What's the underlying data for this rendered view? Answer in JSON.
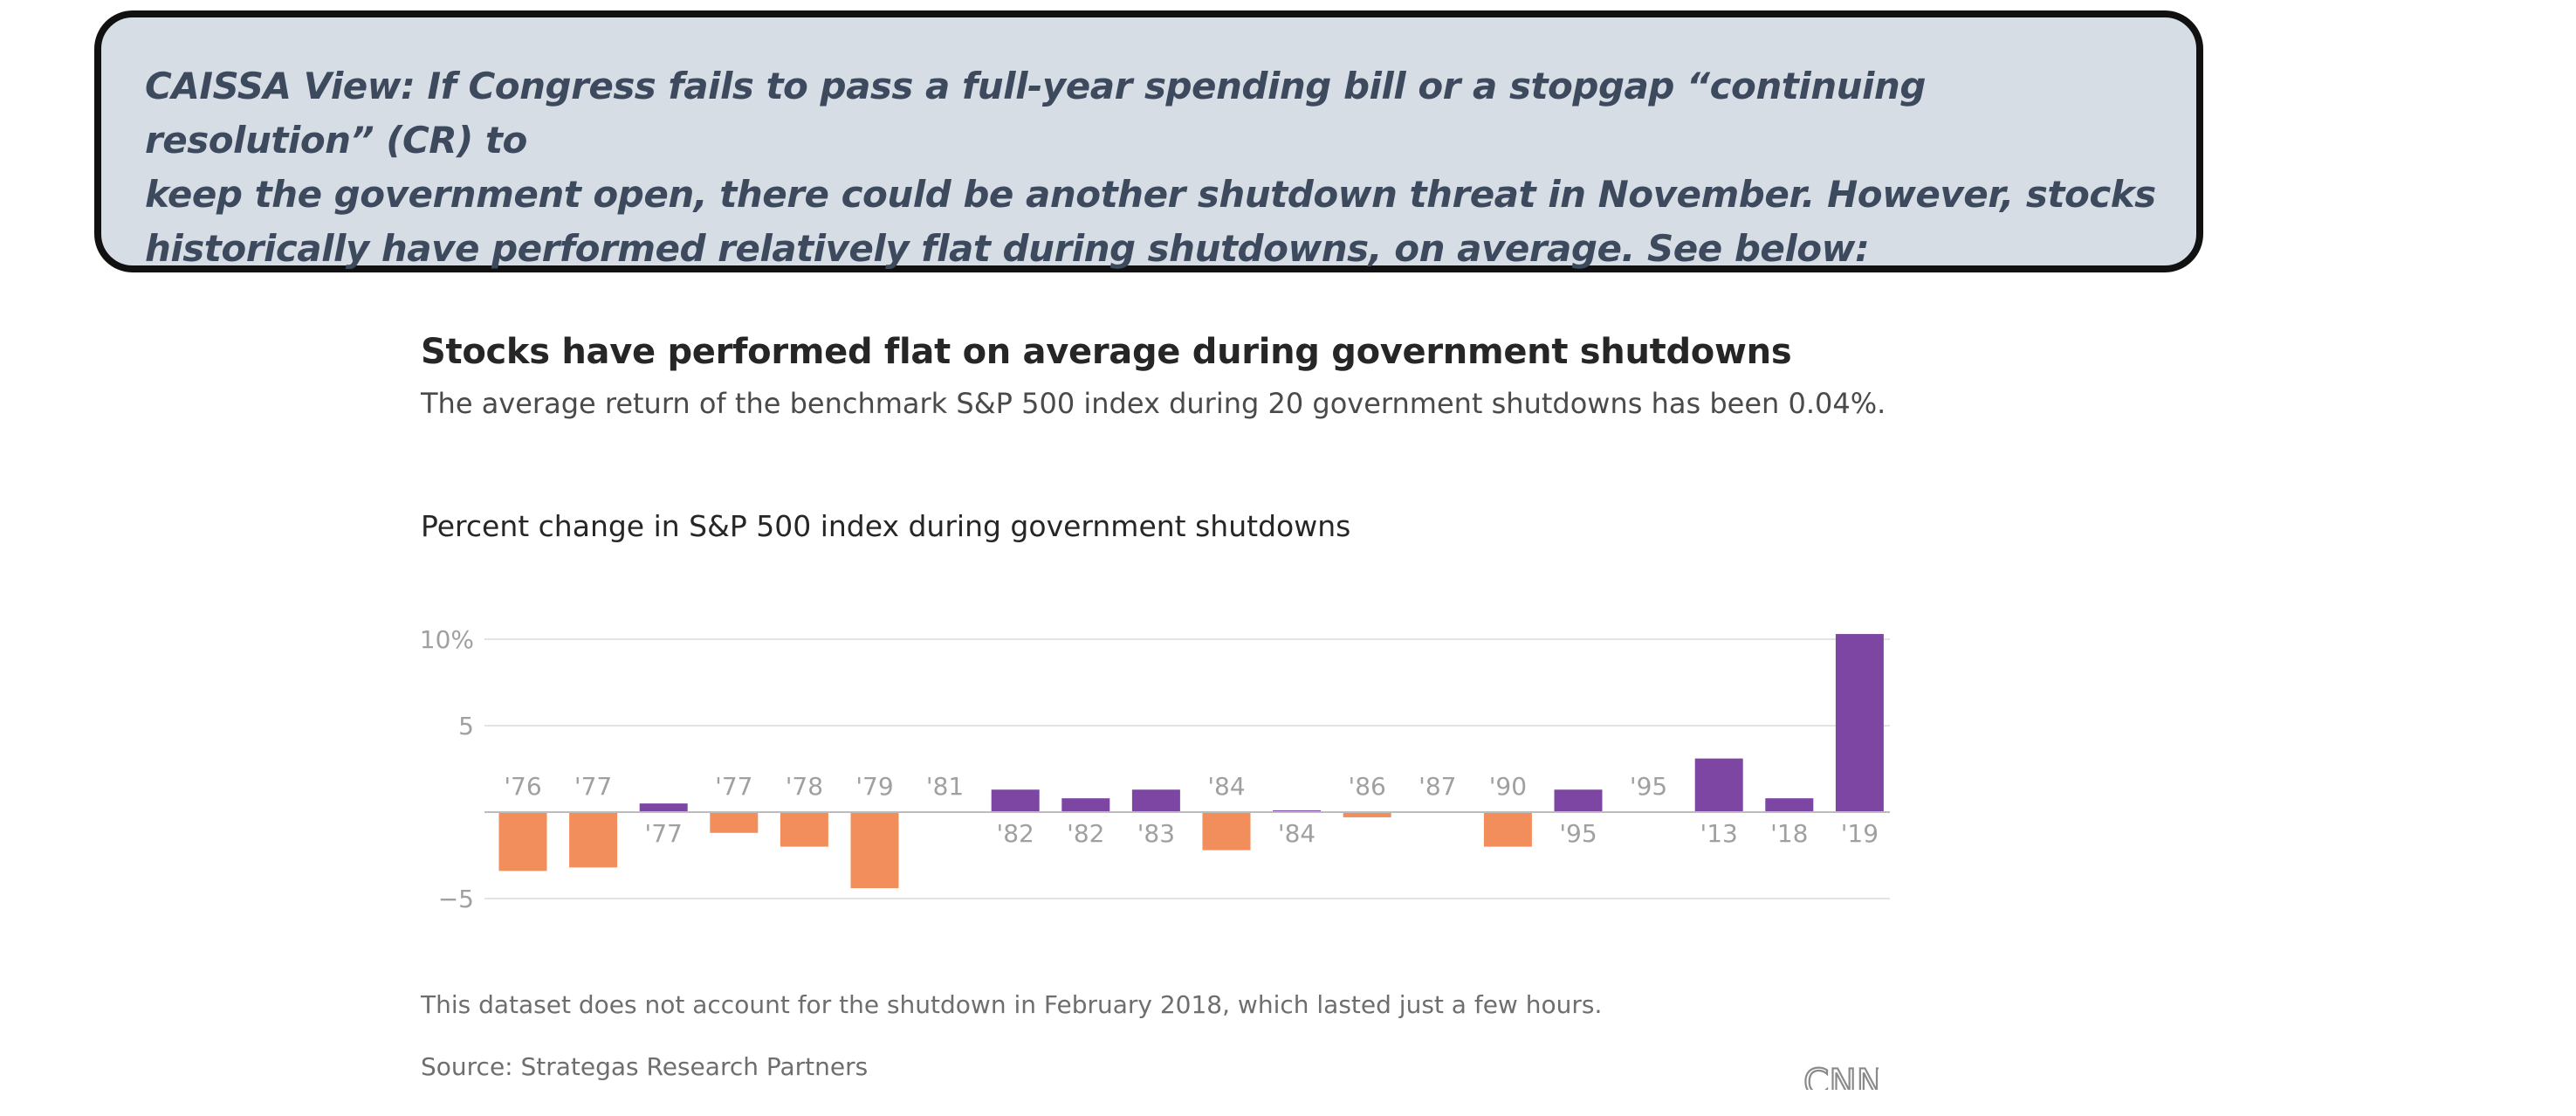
{
  "callout": {
    "text": "CAISSA View: If Congress fails to pass a full-year spending bill or a stopgap “continuing resolution” (CR) to\nkeep the government open, there could be another shutdown threat  in November. However, stocks\nhistorically have performed relatively flat during shutdowns, on average. See below:"
  },
  "chart_data": {
    "type": "bar",
    "title": "Stocks have performed flat on average during government shutdowns",
    "subtitle": "The average return of the benchmark S&P 500 index during 20 government shutdowns has been 0.04%.",
    "heading": "Percent change in S&P 500 index during government shutdowns",
    "categories": [
      "'76",
      "'77",
      "'77",
      "'77",
      "'78",
      "'79",
      "'81",
      "'82",
      "'82",
      "'83",
      "'84",
      "'84",
      "'86",
      "'87",
      "'90",
      "'95",
      "'95",
      "'13",
      "'18",
      "'19"
    ],
    "values": [
      -3.4,
      -3.2,
      0.5,
      -1.2,
      -2.0,
      -4.4,
      0.0,
      1.3,
      0.8,
      1.3,
      -2.2,
      0.1,
      -0.3,
      0.0,
      -2.0,
      1.3,
      0.0,
      3.1,
      0.8,
      10.3
    ],
    "tick_values": [
      10,
      5,
      -5
    ],
    "tick_labels": [
      "10%",
      "5",
      "−5"
    ],
    "ylim": [
      -6,
      11
    ],
    "grid": true,
    "colors": {
      "positive": "#7d46a3",
      "negative": "#f28e5b",
      "label": "#a0a0a0",
      "grid": "#e3e3e3",
      "zero": "#bcbcbc"
    }
  },
  "footnote": "This dataset does not account for the shutdown in February 2018, which lasted just a few hours.",
  "source": "Source: Strategas Research Partners",
  "logo": {
    "text": "CNN",
    "icon": "cnn-logo"
  }
}
